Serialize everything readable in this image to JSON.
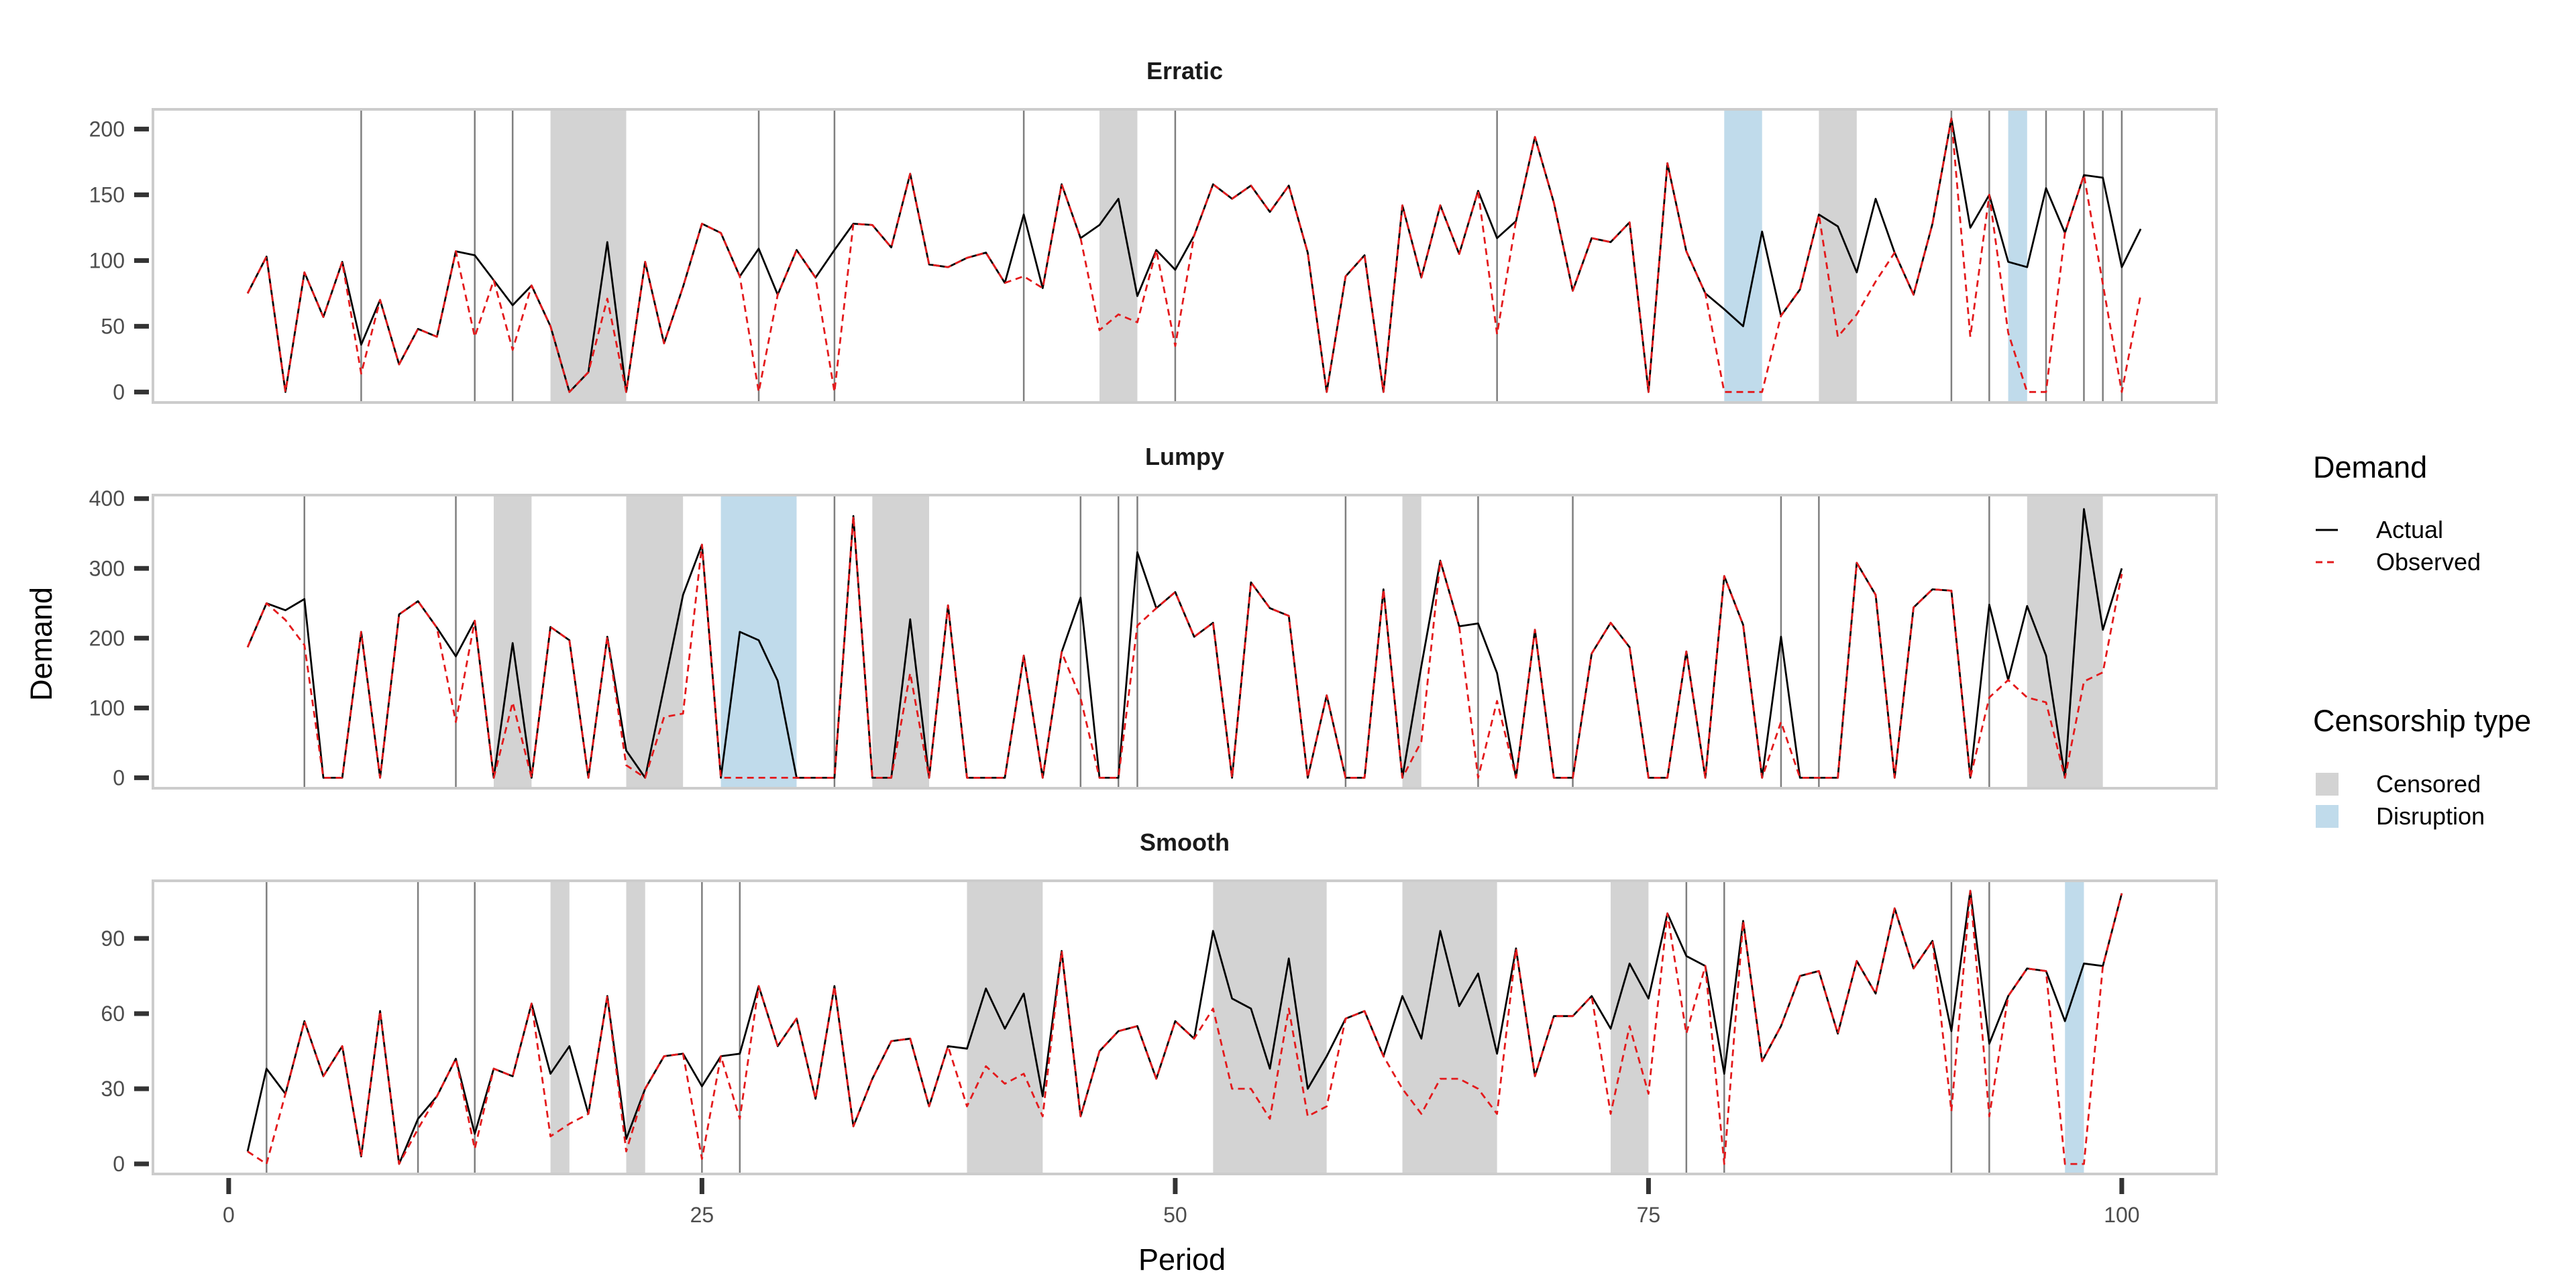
{
  "chart_data": {
    "type": "line",
    "xlabel": "Period",
    "ylabel": "Demand",
    "x_ticks": [
      0,
      25,
      50,
      75,
      100
    ],
    "xlim": [
      -4,
      105
    ],
    "legend": {
      "placement": "right",
      "demand_title": "Demand",
      "demand_entries": [
        {
          "name": "Actual",
          "style": "solid",
          "color": "#000000"
        },
        {
          "name": "Observed",
          "style": "dashed",
          "color": "#e31a1c"
        }
      ],
      "censorship_title": "Censorship type",
      "censorship_entries": [
        {
          "name": "Censored",
          "color": "#d3d3d3"
        },
        {
          "name": "Disruption",
          "color": "#c0dbeb"
        }
      ]
    },
    "panels": [
      {
        "title": "Erratic",
        "ylim": [
          -8,
          215
        ],
        "y_ticks": [
          0,
          50,
          100,
          150,
          200
        ],
        "censored_regions": [
          [
            17,
            21
          ],
          [
            46,
            48
          ],
          [
            84,
            86
          ]
        ],
        "disruption_regions": [
          [
            79,
            81
          ],
          [
            94,
            95
          ]
        ],
        "event_lines": [
          7,
          13,
          15,
          28,
          32,
          42,
          50,
          67,
          91,
          93,
          96,
          98,
          99,
          100
        ],
        "actual": [
          75,
          103,
          0,
          91,
          57,
          99,
          36,
          70,
          21,
          48,
          42,
          107,
          104,
          85,
          66,
          81,
          50,
          0,
          15,
          114,
          0,
          99,
          37,
          80,
          128,
          121,
          88,
          109,
          74,
          108,
          87,
          108,
          128,
          127,
          110,
          166,
          97,
          95,
          102,
          106,
          83,
          135,
          79,
          158,
          117,
          127,
          147,
          73,
          108,
          93,
          119,
          158,
          147,
          157,
          137,
          157,
          106,
          0,
          88,
          104,
          0,
          142,
          87,
          142,
          105,
          153,
          117,
          130,
          194,
          144,
          77,
          117,
          114,
          129,
          0,
          174,
          107,
          75,
          63,
          50,
          122,
          58,
          78,
          135,
          126,
          91,
          147,
          106,
          74,
          128,
          208,
          125,
          150,
          99,
          95,
          155,
          121,
          165,
          163,
          95,
          124
        ],
        "observed": [
          75,
          103,
          0,
          91,
          57,
          99,
          14,
          70,
          21,
          48,
          42,
          107,
          42,
          85,
          32,
          81,
          50,
          0,
          15,
          71,
          0,
          99,
          37,
          80,
          128,
          121,
          88,
          0,
          74,
          108,
          87,
          0,
          128,
          127,
          110,
          166,
          97,
          95,
          102,
          106,
          83,
          88,
          79,
          158,
          117,
          47,
          59,
          53,
          108,
          35,
          119,
          158,
          147,
          157,
          137,
          157,
          106,
          0,
          88,
          104,
          0,
          142,
          87,
          142,
          105,
          153,
          44,
          130,
          194,
          144,
          77,
          117,
          114,
          129,
          0,
          174,
          107,
          75,
          0,
          0,
          0,
          58,
          78,
          135,
          42,
          59,
          84,
          106,
          74,
          128,
          208,
          42,
          150,
          45,
          0,
          0,
          121,
          165,
          82,
          0,
          74
        ]
      },
      {
        "title": "Lumpy",
        "ylim": [
          -15,
          405
        ],
        "y_ticks": [
          0,
          100,
          200,
          300,
          400
        ],
        "censored_regions": [
          [
            14,
            16
          ],
          [
            21,
            24
          ],
          [
            34,
            37
          ],
          [
            62,
            63
          ],
          [
            95,
            99
          ]
        ],
        "disruption_regions": [
          [
            26,
            30
          ]
        ],
        "event_lines": [
          4,
          12,
          32,
          45,
          47,
          48,
          59,
          66,
          71,
          82,
          84,
          93
        ],
        "actual": [
          187,
          250,
          240,
          256,
          0,
          0,
          209,
          0,
          234,
          253,
          215,
          174,
          225,
          0,
          193,
          0,
          216,
          197,
          0,
          202,
          39,
          0,
          130,
          262,
          334,
          0,
          209,
          197,
          139,
          0,
          0,
          0,
          375,
          0,
          0,
          227,
          0,
          247,
          0,
          0,
          0,
          175,
          0,
          180,
          258,
          0,
          0,
          323,
          243,
          266,
          202,
          222,
          0,
          280,
          243,
          232,
          0,
          118,
          0,
          0,
          270,
          0,
          160,
          311,
          217,
          221,
          150,
          0,
          212,
          0,
          0,
          178,
          222,
          187,
          0,
          0,
          181,
          0,
          289,
          219,
          0,
          202,
          0,
          0,
          0,
          308,
          262,
          0,
          244,
          270,
          268,
          0,
          248,
          140,
          246,
          175,
          0,
          385,
          212,
          300
        ],
        "observed": [
          187,
          250,
          226,
          190,
          0,
          0,
          209,
          0,
          234,
          253,
          215,
          80,
          225,
          0,
          108,
          0,
          216,
          197,
          0,
          202,
          18,
          0,
          87,
          92,
          334,
          0,
          0,
          0,
          0,
          0,
          0,
          0,
          375,
          0,
          0,
          150,
          0,
          247,
          0,
          0,
          0,
          175,
          0,
          180,
          114,
          0,
          0,
          218,
          243,
          266,
          202,
          222,
          0,
          280,
          243,
          232,
          0,
          118,
          0,
          0,
          270,
          0,
          52,
          311,
          217,
          0,
          110,
          0,
          212,
          0,
          0,
          178,
          222,
          187,
          0,
          0,
          181,
          0,
          289,
          219,
          0,
          80,
          0,
          0,
          0,
          308,
          262,
          0,
          244,
          270,
          268,
          0,
          115,
          140,
          115,
          108,
          0,
          138,
          151,
          292
        ]
      },
      {
        "title": "Smooth",
        "ylim": [
          -4,
          113
        ],
        "y_ticks": [
          0,
          30,
          60,
          90
        ],
        "censored_regions": [
          [
            17,
            18
          ],
          [
            21,
            22
          ],
          [
            39,
            43
          ],
          [
            52,
            58
          ],
          [
            62,
            67
          ],
          [
            73,
            75
          ]
        ],
        "disruption_regions": [
          [
            97,
            98
          ]
        ],
        "event_lines": [
          2,
          10,
          13,
          25,
          27,
          77,
          79,
          91,
          93
        ],
        "actual": [
          5,
          38,
          28,
          57,
          35,
          47,
          3,
          61,
          0,
          18,
          27,
          42,
          12,
          38,
          35,
          64,
          36,
          47,
          20,
          67,
          10,
          30,
          43,
          44,
          31,
          43,
          44,
          71,
          47,
          58,
          26,
          71,
          15,
          34,
          49,
          50,
          23,
          47,
          46,
          70,
          54,
          68,
          27,
          85,
          19,
          45,
          53,
          55,
          34,
          57,
          50,
          93,
          66,
          62,
          38,
          82,
          30,
          43,
          58,
          61,
          43,
          67,
          50,
          93,
          63,
          76,
          44,
          86,
          35,
          59,
          59,
          67,
          54,
          80,
          66,
          100,
          83,
          79,
          36,
          97,
          41,
          55,
          75,
          77,
          52,
          81,
          68,
          102,
          78,
          89,
          53,
          109,
          48,
          67,
          78,
          77,
          57,
          80,
          79,
          108
        ],
        "observed": [
          5,
          0,
          28,
          57,
          35,
          47,
          3,
          61,
          0,
          14,
          27,
          42,
          6,
          38,
          35,
          64,
          11,
          16,
          20,
          67,
          5,
          30,
          43,
          44,
          2,
          43,
          18,
          71,
          47,
          58,
          26,
          71,
          15,
          34,
          49,
          50,
          23,
          47,
          23,
          39,
          32,
          36,
          19,
          85,
          19,
          45,
          53,
          55,
          34,
          57,
          50,
          62,
          30,
          30,
          18,
          62,
          19,
          23,
          58,
          61,
          43,
          30,
          20,
          34,
          34,
          30,
          20,
          86,
          35,
          59,
          59,
          67,
          20,
          55,
          28,
          100,
          52,
          79,
          0,
          97,
          41,
          55,
          75,
          77,
          52,
          81,
          68,
          102,
          78,
          89,
          21,
          109,
          19,
          67,
          78,
          77,
          0,
          0,
          79,
          108
        ]
      }
    ]
  }
}
